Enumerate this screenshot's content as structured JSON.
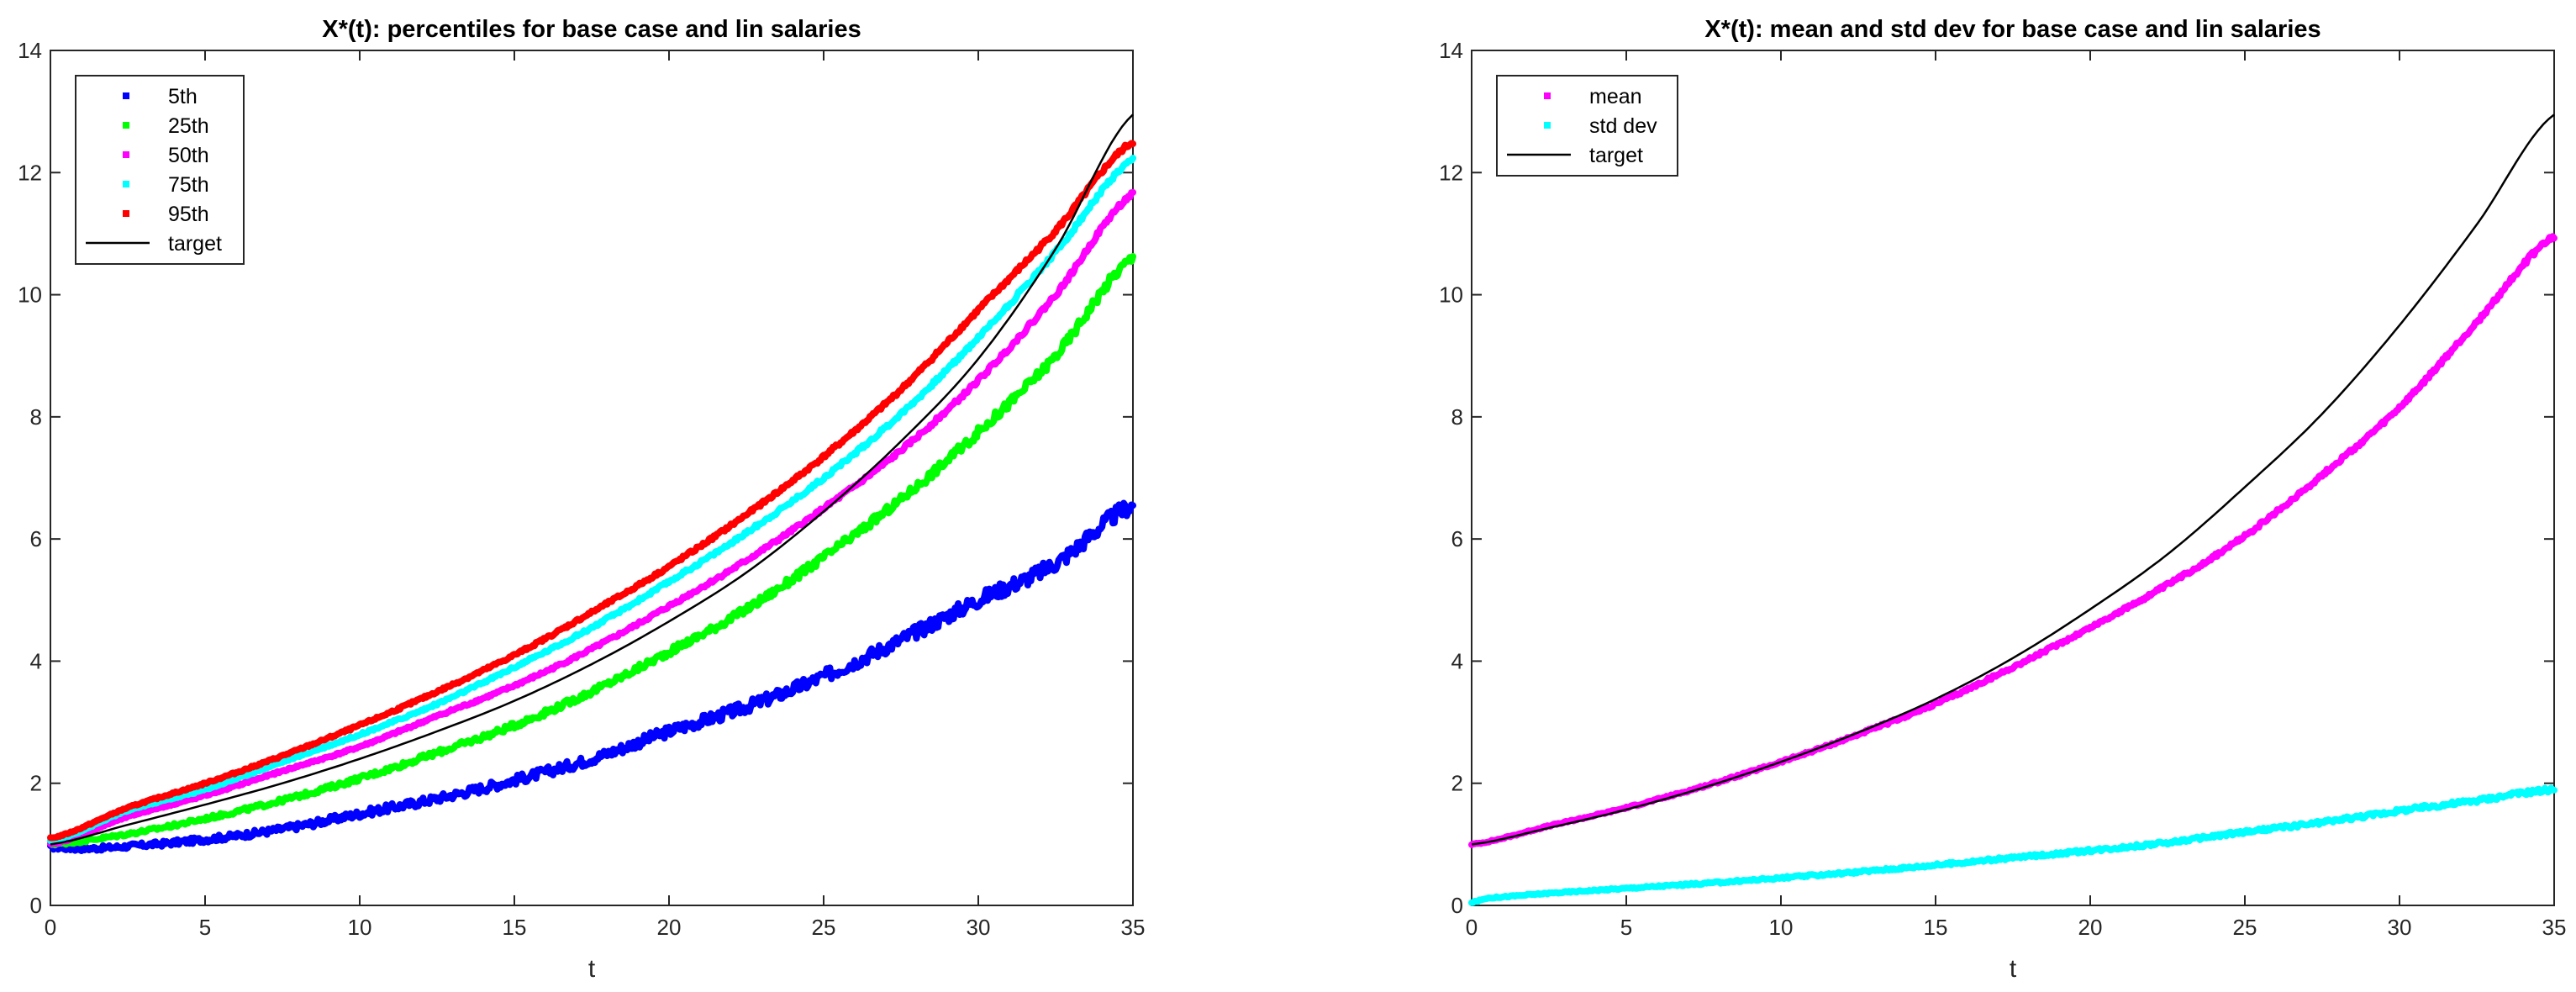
{
  "chart_data": [
    {
      "type": "line",
      "title": "X*(t): percentiles for base case and lin salaries",
      "xlabel": "t",
      "ylabel": "",
      "xlim": [
        0,
        35
      ],
      "ylim": [
        0,
        14
      ],
      "xticks": [
        "0",
        "5",
        "10",
        "15",
        "20",
        "25",
        "30",
        "35"
      ],
      "yticks": [
        "0",
        "2",
        "4",
        "6",
        "8",
        "10",
        "12",
        "14"
      ],
      "grid": false,
      "legend_position": "top-left",
      "series": [
        {
          "name": "5th",
          "color": "#0000ff",
          "style": "markers",
          "x": [
            0,
            1,
            2.5,
            5,
            7.5,
            10,
            12.5,
            15,
            17.5,
            20,
            22.5,
            25,
            27.5,
            30,
            32.5,
            35
          ],
          "values": [
            0.95,
            0.93,
            0.97,
            1.08,
            1.25,
            1.5,
            1.75,
            2.05,
            2.4,
            2.85,
            3.25,
            3.75,
            4.35,
            5.0,
            5.6,
            6.55
          ]
        },
        {
          "name": "25th",
          "color": "#00ff00",
          "style": "markers",
          "x": [
            0,
            2.5,
            5,
            7.5,
            10,
            12.5,
            15,
            17.5,
            20,
            22.5,
            25,
            27.5,
            30,
            32.5,
            35
          ],
          "values": [
            1.0,
            1.17,
            1.42,
            1.72,
            2.08,
            2.5,
            2.95,
            3.5,
            4.15,
            4.85,
            5.7,
            6.65,
            7.75,
            9.0,
            10.6
          ]
        },
        {
          "name": "50th",
          "color": "#ff00ff",
          "style": "markers",
          "x": [
            0,
            2.5,
            5,
            7.5,
            10,
            12.5,
            15,
            17.5,
            20,
            22.5,
            25,
            27.5,
            30,
            32.5,
            35
          ],
          "values": [
            1.0,
            1.45,
            1.8,
            2.2,
            2.6,
            3.1,
            3.6,
            4.2,
            4.9,
            5.65,
            6.5,
            7.45,
            8.6,
            10.0,
            11.65
          ]
        },
        {
          "name": "75th",
          "color": "#00ffff",
          "style": "markers",
          "x": [
            0,
            2.5,
            5,
            7.5,
            10,
            12.5,
            15,
            17.5,
            20,
            22.5,
            25,
            27.5,
            30,
            32.5,
            35
          ],
          "values": [
            1.05,
            1.55,
            1.9,
            2.35,
            2.8,
            3.3,
            3.9,
            4.55,
            5.3,
            6.1,
            7.0,
            8.05,
            9.3,
            10.7,
            12.2
          ]
        },
        {
          "name": "95th",
          "color": "#ff0000",
          "style": "markers",
          "x": [
            0,
            2.5,
            5,
            7.5,
            10,
            12.5,
            15,
            17.5,
            20,
            22.5,
            25,
            27.5,
            30,
            32.5,
            35
          ],
          "values": [
            1.1,
            1.6,
            2.0,
            2.45,
            2.95,
            3.5,
            4.1,
            4.8,
            5.55,
            6.4,
            7.35,
            8.45,
            9.75,
            11.05,
            12.5
          ]
        },
        {
          "name": "target",
          "color": "#000000",
          "style": "line",
          "x": [
            0,
            2.5,
            5,
            7.5,
            10,
            12.5,
            15,
            17.5,
            20,
            22.5,
            25,
            27.5,
            30,
            32.5,
            35
          ],
          "values": [
            1.0,
            1.32,
            1.65,
            2.0,
            2.4,
            2.85,
            3.35,
            3.95,
            4.65,
            5.45,
            6.45,
            7.6,
            8.95,
            10.75,
            12.95
          ]
        }
      ]
    },
    {
      "type": "line",
      "title": "X*(t): mean and std dev for base case and lin salaries",
      "xlabel": "t",
      "ylabel": "",
      "xlim": [
        0,
        35
      ],
      "ylim": [
        0,
        14
      ],
      "xticks": [
        "0",
        "5",
        "10",
        "15",
        "20",
        "25",
        "30",
        "35"
      ],
      "yticks": [
        "0",
        "2",
        "4",
        "6",
        "8",
        "10",
        "12",
        "14"
      ],
      "grid": false,
      "legend_position": "top-left",
      "series": [
        {
          "name": "mean",
          "color": "#ff00ff",
          "style": "markers",
          "x": [
            0,
            2.5,
            5,
            7.5,
            10,
            12.5,
            15,
            17.5,
            20,
            22.5,
            25,
            27.5,
            30,
            32.5,
            35
          ],
          "values": [
            1.0,
            1.3,
            1.6,
            1.95,
            2.35,
            2.8,
            3.3,
            3.9,
            4.55,
            5.25,
            6.05,
            7.05,
            8.15,
            9.55,
            10.95
          ]
        },
        {
          "name": "std dev",
          "color": "#00ffff",
          "style": "markers",
          "x": [
            0,
            0.5,
            2.5,
            5,
            7.5,
            10,
            12.5,
            15,
            17.5,
            20,
            22.5,
            25,
            27.5,
            30,
            32.5,
            35
          ],
          "values": [
            0.05,
            0.12,
            0.2,
            0.28,
            0.36,
            0.45,
            0.55,
            0.66,
            0.78,
            0.9,
            1.03,
            1.2,
            1.36,
            1.55,
            1.72,
            1.9
          ]
        },
        {
          "name": "target",
          "color": "#000000",
          "style": "line",
          "x": [
            0,
            2.5,
            5,
            7.5,
            10,
            12.5,
            15,
            17.5,
            20,
            22.5,
            25,
            27.5,
            30,
            32.5,
            35
          ],
          "values": [
            1.0,
            1.27,
            1.57,
            1.93,
            2.35,
            2.83,
            3.38,
            4.05,
            4.85,
            5.75,
            6.85,
            8.05,
            9.5,
            11.15,
            12.95
          ]
        }
      ]
    }
  ]
}
